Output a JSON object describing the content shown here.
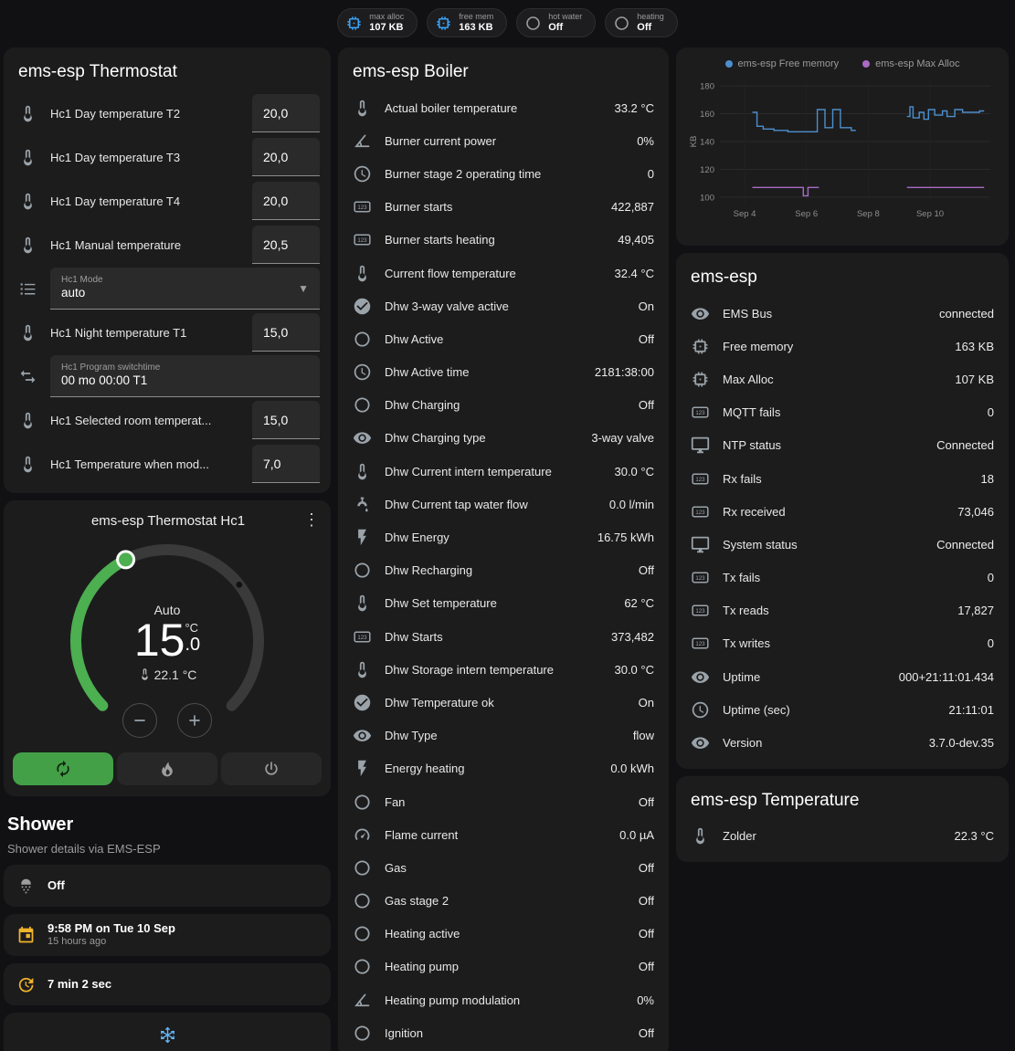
{
  "colors": {
    "page_bg": "#111113",
    "card_bg": "#1c1c1d",
    "accent_green": "#43a047",
    "chip_icon_blue": "#39a1f4",
    "state_off_gray": "#9e9e9e",
    "amber": "#f0b429",
    "snowflake_blue": "#64b5f6",
    "graph_blue": "#4d8fcc",
    "graph_purple": "#a96bc4"
  },
  "header": {
    "chips": [
      {
        "label": "max alloc",
        "value": "107 KB",
        "icon": "memory-icon",
        "color": "#39a1f4"
      },
      {
        "label": "free mem",
        "value": "163 KB",
        "icon": "memory-icon",
        "color": "#39a1f4"
      },
      {
        "label": "hot water",
        "value": "Off",
        "icon": "circle-outline-icon",
        "color": "#9e9e9e"
      },
      {
        "label": "heating",
        "value": "Off",
        "icon": "circle-outline-icon",
        "color": "#9e9e9e"
      }
    ]
  },
  "thermostat_card": {
    "title": "ems-esp Thermostat",
    "rows": [
      {
        "type": "number",
        "icon": "thermometer-icon",
        "label": "Hc1 Day temperature T2",
        "value": "20,0"
      },
      {
        "type": "number",
        "icon": "thermometer-icon",
        "label": "Hc1 Day temperature T3",
        "value": "20,0"
      },
      {
        "type": "number",
        "icon": "thermometer-icon",
        "label": "Hc1 Day temperature T4",
        "value": "20,0"
      },
      {
        "type": "number",
        "icon": "thermometer-icon",
        "label": "Hc1 Manual temperature",
        "value": "20,5"
      },
      {
        "type": "select",
        "icon": "list-icon",
        "box_label": "Hc1 Mode",
        "value": "auto"
      },
      {
        "type": "number",
        "icon": "thermometer-icon",
        "label": "Hc1 Night temperature T1",
        "value": "15,0"
      },
      {
        "type": "text",
        "icon": "swap-icon",
        "box_label": "Hc1 Program switchtime",
        "value": "00 mo 00:00 T1"
      },
      {
        "type": "number",
        "icon": "thermometer-icon",
        "label": "Hc1 Selected room temperat...",
        "value": "15,0"
      },
      {
        "type": "number",
        "icon": "thermometer-icon",
        "label": "Hc1 Temperature when mod...",
        "value": "7,0"
      }
    ]
  },
  "hc1_card": {
    "title": "ems-esp Thermostat Hc1",
    "mode": "Auto",
    "target_int": "15",
    "target_dec": ".0",
    "unit": "°C",
    "current": "22.1 °C",
    "buttons": [
      {
        "name": "auto",
        "icon": "autorenew-icon",
        "active": true
      },
      {
        "name": "heat",
        "icon": "flame-icon",
        "active": false
      },
      {
        "name": "off",
        "icon": "power-icon",
        "active": false
      }
    ]
  },
  "shower": {
    "title": "Shower",
    "subtitle": "Shower details via EMS-ESP",
    "items": [
      {
        "icon": "shower-icon",
        "color": "#9e9e9e",
        "primary": "Off",
        "secondary": ""
      },
      {
        "icon": "calendar-icon",
        "color": "#f0b429",
        "primary": "9:58 PM on Tue 10 Sep",
        "secondary": "15 hours ago"
      },
      {
        "icon": "timer-icon",
        "color": "#f0b429",
        "primary": "7 min 2 sec",
        "secondary": ""
      }
    ],
    "extra_card_icon": "snowflake-icon"
  },
  "boiler_card": {
    "title": "ems-esp Boiler",
    "rows": [
      {
        "icon": "thermometer-icon",
        "label": "Actual boiler temperature",
        "value": "33.2 °C"
      },
      {
        "icon": "angle-icon",
        "label": "Burner current power",
        "value": "0%"
      },
      {
        "icon": "clock-icon",
        "label": "Burner stage 2 operating time",
        "value": "0"
      },
      {
        "icon": "counter-icon",
        "label": "Burner starts",
        "value": "422,887"
      },
      {
        "icon": "counter-icon",
        "label": "Burner starts heating",
        "value": "49,405"
      },
      {
        "icon": "thermometer-icon",
        "label": "Current flow temperature",
        "value": "32.4 °C"
      },
      {
        "icon": "check-circle-icon",
        "label": "Dhw 3-way valve active",
        "value": "On"
      },
      {
        "icon": "circle-outline-icon",
        "label": "Dhw Active",
        "value": "Off"
      },
      {
        "icon": "clock-icon",
        "label": "Dhw Active time",
        "value": "2181:38:00"
      },
      {
        "icon": "circle-outline-icon",
        "label": "Dhw Charging",
        "value": "Off"
      },
      {
        "icon": "eye-icon",
        "label": "Dhw Charging type",
        "value": "3-way valve"
      },
      {
        "icon": "thermometer-icon",
        "label": "Dhw Current intern temperature",
        "value": "30.0 °C"
      },
      {
        "icon": "faucet-icon",
        "label": "Dhw Current tap water flow",
        "value": "0.0 l/min"
      },
      {
        "icon": "flash-icon",
        "label": "Dhw Energy",
        "value": "16.75 kWh"
      },
      {
        "icon": "circle-outline-icon",
        "label": "Dhw Recharging",
        "value": "Off"
      },
      {
        "icon": "thermometer-icon",
        "label": "Dhw Set temperature",
        "value": "62 °C"
      },
      {
        "icon": "counter-icon",
        "label": "Dhw Starts",
        "value": "373,482"
      },
      {
        "icon": "thermometer-icon",
        "label": "Dhw Storage intern temperature",
        "value": "30.0 °C"
      },
      {
        "icon": "check-circle-icon",
        "label": "Dhw Temperature ok",
        "value": "On"
      },
      {
        "icon": "eye-icon",
        "label": "Dhw Type",
        "value": "flow"
      },
      {
        "icon": "flash-icon",
        "label": "Energy heating",
        "value": "0.0 kWh"
      },
      {
        "icon": "circle-outline-icon",
        "label": "Fan",
        "value": "Off"
      },
      {
        "icon": "gauge-icon",
        "label": "Flame current",
        "value": "0.0 µA"
      },
      {
        "icon": "circle-outline-icon",
        "label": "Gas",
        "value": "Off"
      },
      {
        "icon": "circle-outline-icon",
        "label": "Gas stage 2",
        "value": "Off"
      },
      {
        "icon": "circle-outline-icon",
        "label": "Heating active",
        "value": "Off"
      },
      {
        "icon": "circle-outline-icon",
        "label": "Heating pump",
        "value": "Off"
      },
      {
        "icon": "angle-icon",
        "label": "Heating pump modulation",
        "value": "0%"
      },
      {
        "icon": "circle-outline-icon",
        "label": "Ignition",
        "value": "Off"
      }
    ]
  },
  "emsesp_card": {
    "title": "ems-esp",
    "rows": [
      {
        "icon": "eye-icon",
        "label": "EMS Bus",
        "value": "connected"
      },
      {
        "icon": "memory-icon",
        "label": "Free memory",
        "value": "163 KB"
      },
      {
        "icon": "memory-icon",
        "label": "Max Alloc",
        "value": "107 KB"
      },
      {
        "icon": "counter-icon",
        "label": "MQTT fails",
        "value": "0"
      },
      {
        "icon": "monitor-icon",
        "label": "NTP status",
        "value": "Connected"
      },
      {
        "icon": "counter-icon",
        "label": "Rx fails",
        "value": "18"
      },
      {
        "icon": "counter-icon",
        "label": "Rx received",
        "value": "73,046"
      },
      {
        "icon": "monitor-icon",
        "label": "System status",
        "value": "Connected"
      },
      {
        "icon": "counter-icon",
        "label": "Tx fails",
        "value": "0"
      },
      {
        "icon": "counter-icon",
        "label": "Tx reads",
        "value": "17,827"
      },
      {
        "icon": "counter-icon",
        "label": "Tx writes",
        "value": "0"
      },
      {
        "icon": "eye-icon",
        "label": "Uptime",
        "value": "000+21:11:01.434"
      },
      {
        "icon": "clock-icon",
        "label": "Uptime (sec)",
        "value": "21:11:01"
      },
      {
        "icon": "eye-icon",
        "label": "Version",
        "value": "3.7.0-dev.35"
      }
    ]
  },
  "temperature_card": {
    "title": "ems-esp Temperature",
    "rows": [
      {
        "icon": "thermometer-icon",
        "label": "Zolder",
        "value": "22.3 °C"
      }
    ]
  },
  "chart_data": {
    "type": "line",
    "title": "",
    "xlabel": "",
    "ylabel": "KB",
    "ylim": [
      96,
      184
    ],
    "yticks": [
      100,
      120,
      140,
      160,
      180
    ],
    "xlim": [
      3.2,
      11.95
    ],
    "xticks": [
      {
        "x": 4,
        "label": "Sep 4"
      },
      {
        "x": 6,
        "label": "Sep 6"
      },
      {
        "x": 8,
        "label": "Sep 8"
      },
      {
        "x": 10,
        "label": "Sep 10"
      }
    ],
    "grid": true,
    "legend_position": "top",
    "series": [
      {
        "name": "ems-esp Free memory",
        "color": "#4d8fcc",
        "segments": [
          [
            [
              4.25,
              161
            ],
            [
              4.4,
              161
            ],
            [
              4.4,
              151
            ],
            [
              4.6,
              151
            ],
            [
              4.6,
              149
            ],
            [
              4.95,
              149
            ],
            [
              4.95,
              148
            ],
            [
              5.4,
              148
            ],
            [
              5.4,
              147
            ],
            [
              6.35,
              147
            ],
            [
              6.35,
              163
            ],
            [
              6.6,
              163
            ],
            [
              6.6,
              150
            ],
            [
              6.85,
              150
            ],
            [
              6.85,
              163
            ],
            [
              7.1,
              163
            ],
            [
              7.1,
              150
            ],
            [
              7.45,
              150
            ],
            [
              7.45,
              148
            ],
            [
              7.6,
              148
            ]
          ],
          [
            [
              9.25,
              158
            ],
            [
              9.35,
              158
            ],
            [
              9.35,
              165
            ],
            [
              9.45,
              165
            ],
            [
              9.45,
              157
            ],
            [
              9.65,
              157
            ],
            [
              9.65,
              161
            ],
            [
              9.8,
              161
            ],
            [
              9.8,
              156
            ],
            [
              9.95,
              156
            ],
            [
              9.95,
              163
            ],
            [
              10.15,
              163
            ],
            [
              10.15,
              159
            ],
            [
              10.4,
              159
            ],
            [
              10.4,
              162
            ],
            [
              10.55,
              162
            ],
            [
              10.55,
              158
            ],
            [
              10.8,
              158
            ],
            [
              10.8,
              163
            ],
            [
              11.05,
              163
            ],
            [
              11.05,
              161
            ],
            [
              11.6,
              161
            ],
            [
              11.6,
              162
            ],
            [
              11.75,
              162
            ]
          ]
        ]
      },
      {
        "name": "ems-esp Max Alloc",
        "color": "#a96bc4",
        "segments": [
          [
            [
              4.25,
              107
            ],
            [
              5.9,
              107
            ],
            [
              5.9,
              101
            ],
            [
              6.05,
              101
            ],
            [
              6.05,
              107
            ],
            [
              6.4,
              107
            ]
          ],
          [
            [
              9.25,
              107
            ],
            [
              11.75,
              107
            ]
          ]
        ]
      }
    ]
  }
}
